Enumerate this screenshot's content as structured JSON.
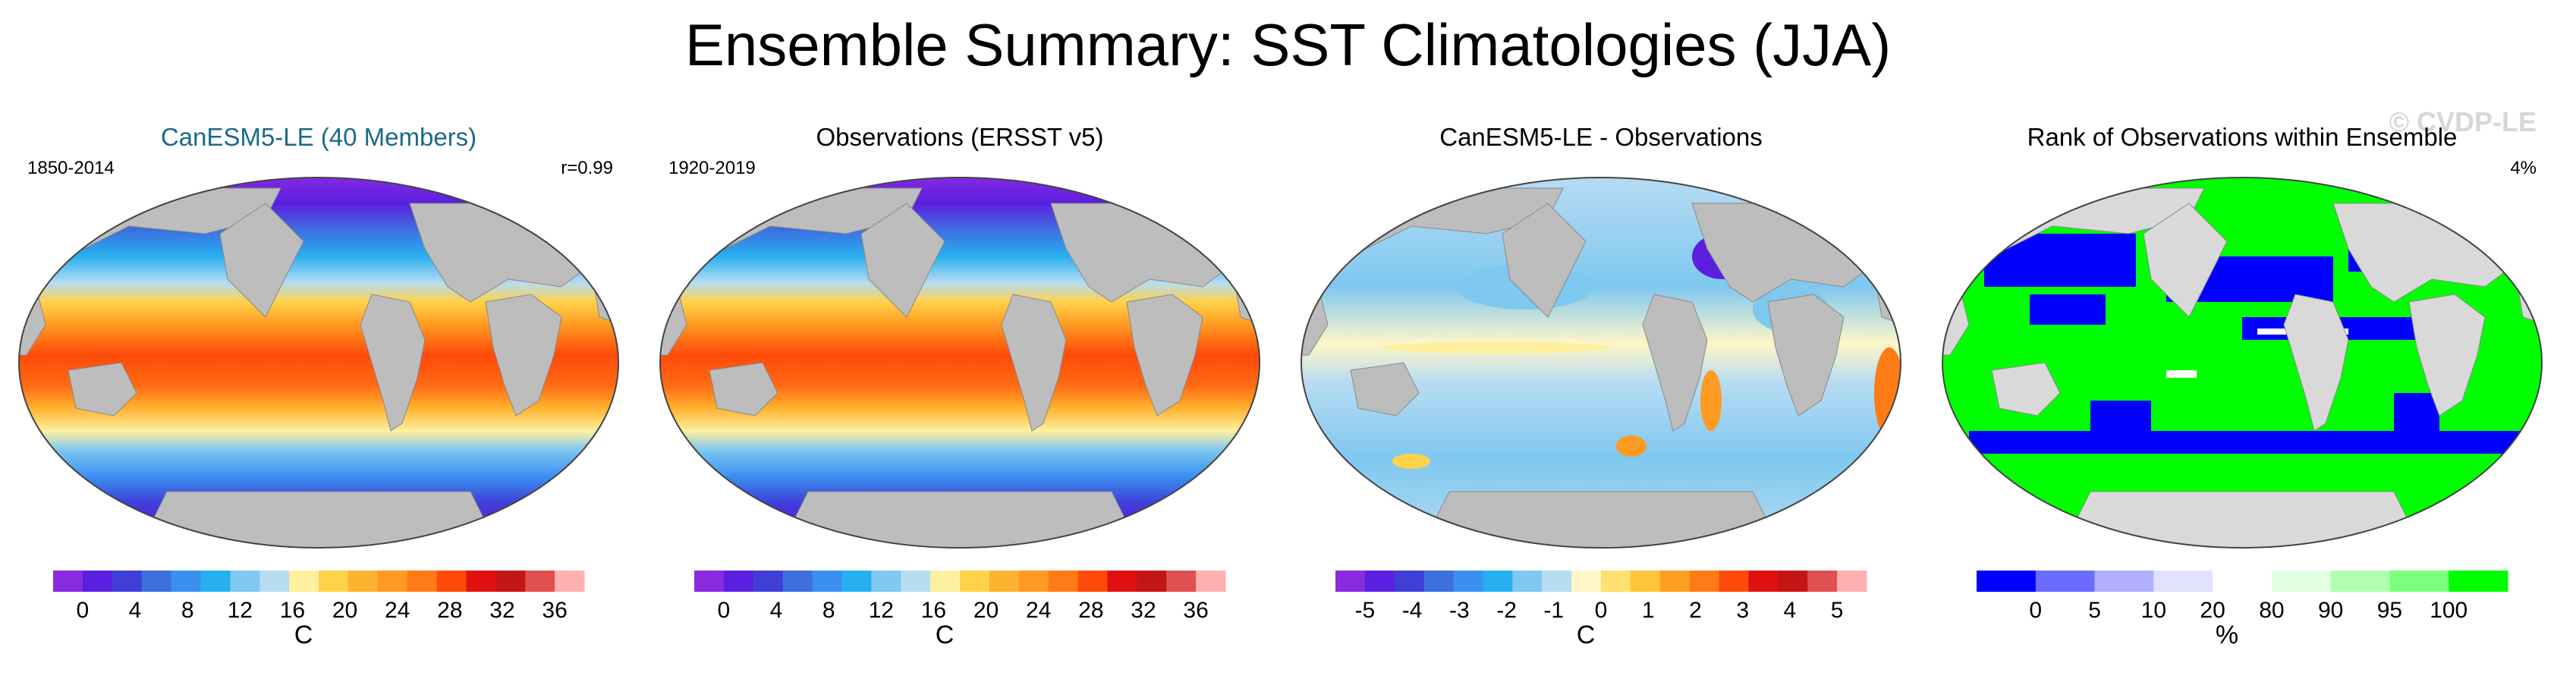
{
  "title": "Ensemble Summary: SST Climatologies (JJA)",
  "watermark": "© CVDP-LE",
  "colors": {
    "land": "#bdbdbd",
    "ocean_outline": "#444444",
    "model_title": "#1b6a8a"
  },
  "panels": [
    {
      "title": "CanESM5-LE (40 Members)",
      "left_label": "1850-2014",
      "right_label": "r=0.99",
      "kind": "sst",
      "colorbar": {
        "colors": [
          "#8a2be2",
          "#5a1fe0",
          "#3f3fd8",
          "#3d6fe0",
          "#3a8ff0",
          "#27b0f0",
          "#7fc8f0",
          "#b8dcf2",
          "#fff0a0",
          "#ffd24a",
          "#ffb22e",
          "#ff9a22",
          "#ff7b15",
          "#ff4a0a",
          "#e11010",
          "#c41515",
          "#e05050",
          "#ffb0b0"
        ],
        "ticks": [
          "0",
          "4",
          "8",
          "12",
          "16",
          "20",
          "24",
          "28",
          "32",
          "36"
        ],
        "unit": "C"
      }
    },
    {
      "title": "Observations (ERSST v5)",
      "left_label": "1920-2019",
      "right_label": "",
      "kind": "sst",
      "colorbar": {
        "colors": [
          "#8a2be2",
          "#5a1fe0",
          "#3f3fd8",
          "#3d6fe0",
          "#3a8ff0",
          "#27b0f0",
          "#7fc8f0",
          "#b8dcf2",
          "#fff0a0",
          "#ffd24a",
          "#ffb22e",
          "#ff9a22",
          "#ff7b15",
          "#ff4a0a",
          "#e11010",
          "#c41515",
          "#e05050",
          "#ffb0b0"
        ],
        "ticks": [
          "0",
          "4",
          "8",
          "12",
          "16",
          "20",
          "24",
          "28",
          "32",
          "36"
        ],
        "unit": "C"
      }
    },
    {
      "title": "CanESM5-LE - Observations",
      "left_label": "",
      "right_label": "",
      "kind": "diff",
      "colorbar": {
        "colors": [
          "#8a2be2",
          "#5a1fe0",
          "#3f3fd8",
          "#3d6fe0",
          "#3a8ff0",
          "#27b0f0",
          "#7fc8f0",
          "#b8dcf2",
          "#fff6c8",
          "#ffe070",
          "#ffc43a",
          "#ff9f22",
          "#ff7b15",
          "#ff4a0a",
          "#e11010",
          "#c41515",
          "#e05050",
          "#ffb0b0"
        ],
        "ticks": [
          "-5",
          "-4",
          "-3",
          "-2",
          "-1",
          "0",
          "1",
          "2",
          "3",
          "4",
          "5"
        ],
        "unit": "C"
      }
    },
    {
      "title": "Rank of Observations within Ensemble",
      "left_label": "",
      "right_label": "4%",
      "kind": "rank",
      "colorbar": {
        "colors": [
          "#0000ff",
          "#6b6bff",
          "#b0b0ff",
          "#e2e2ff",
          "#ffffff",
          "#e2ffe2",
          "#b0ffb0",
          "#7cff7c",
          "#00ff00"
        ],
        "ticks": [
          "0",
          "5",
          "10",
          "20",
          "80",
          "90",
          "95",
          "100"
        ],
        "unit": "%"
      }
    }
  ]
}
